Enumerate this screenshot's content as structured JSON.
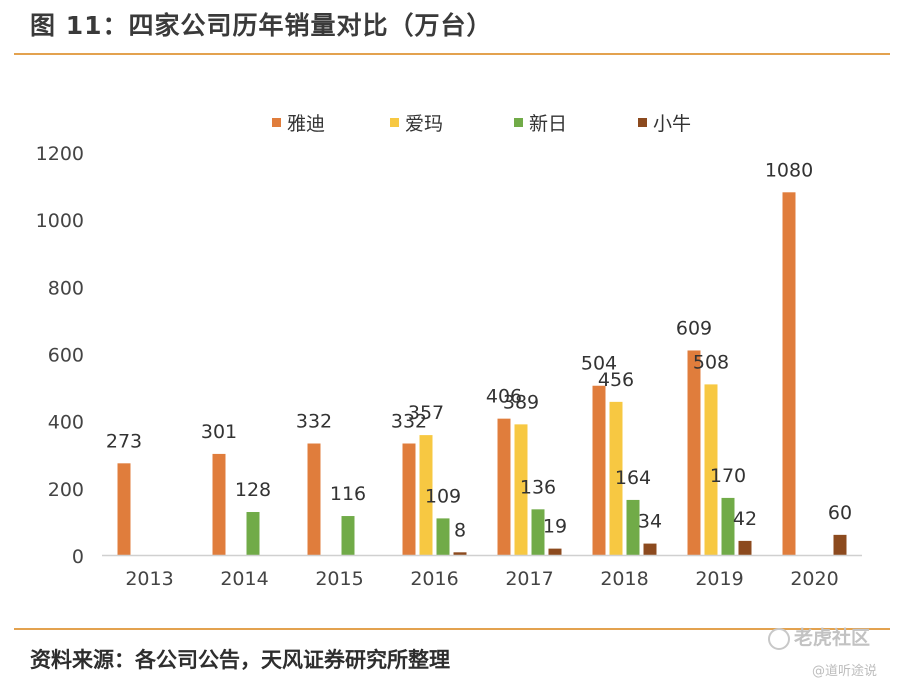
{
  "header": {
    "title": "图 11：四家公司历年销量对比（万台）"
  },
  "footer": {
    "source": "资料来源：各公司公告，天风证券研究所整理",
    "watermark": "老虎社区",
    "watermark_sub": "@道听途说"
  },
  "colors": {
    "accent_rule": "#e3a24f",
    "yadi": "#e07d3c",
    "aima": "#f7c842",
    "xinri": "#71ab48",
    "xiaoniu": "#8c4a1e"
  },
  "chart_data": {
    "type": "bar",
    "title": "",
    "xlabel": "",
    "ylabel": "",
    "ylim": [
      0,
      1200
    ],
    "yticks": [
      0,
      200,
      400,
      600,
      800,
      1000,
      1200
    ],
    "categories": [
      "2013",
      "2014",
      "2015",
      "2016",
      "2017",
      "2018",
      "2019",
      "2020"
    ],
    "legend_position": "top",
    "grid": false,
    "series": [
      {
        "name": "雅迪",
        "color": "#e07d3c",
        "values": [
          273,
          301,
          332,
          332,
          406,
          504,
          609,
          1080
        ]
      },
      {
        "name": "爱玛",
        "color": "#f7c842",
        "values": [
          null,
          null,
          null,
          357,
          389,
          456,
          508,
          null
        ]
      },
      {
        "name": "新日",
        "color": "#71ab48",
        "values": [
          null,
          128,
          116,
          109,
          136,
          164,
          170,
          null
        ]
      },
      {
        "name": "小牛",
        "color": "#8c4a1e",
        "values": [
          null,
          null,
          null,
          8,
          19,
          34,
          42,
          60
        ]
      }
    ]
  }
}
